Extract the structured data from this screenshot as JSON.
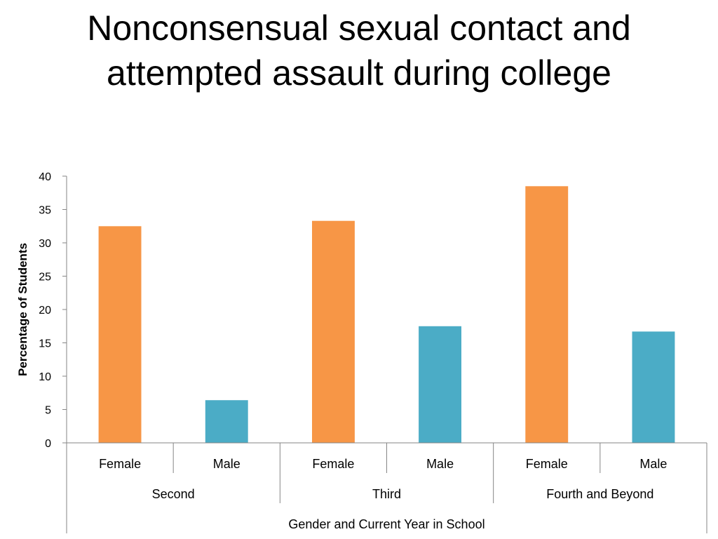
{
  "title_lines": [
    "Nonconsensual sexual contact and",
    "attempted assault during college"
  ],
  "chart_data": {
    "type": "bar",
    "title": "Nonconsensual sexual contact and attempted assault during college",
    "ylabel": "Percentage of Students",
    "xlabel": "Gender and Current Year in School",
    "ylim": [
      0,
      40
    ],
    "yticks": [
      0,
      5,
      10,
      15,
      20,
      25,
      30,
      35,
      40
    ],
    "groups": [
      "Second",
      "Third",
      "Fourth and Beyond"
    ],
    "categories": [
      "Female",
      "Male",
      "Female",
      "Male",
      "Female",
      "Male"
    ],
    "values": [
      32.5,
      6.4,
      33.3,
      17.5,
      38.5,
      16.7
    ],
    "grid": false,
    "legend": "none",
    "colors": {
      "Female": "#f79646",
      "Male": "#4bacc6",
      "axis": "#868686"
    }
  }
}
